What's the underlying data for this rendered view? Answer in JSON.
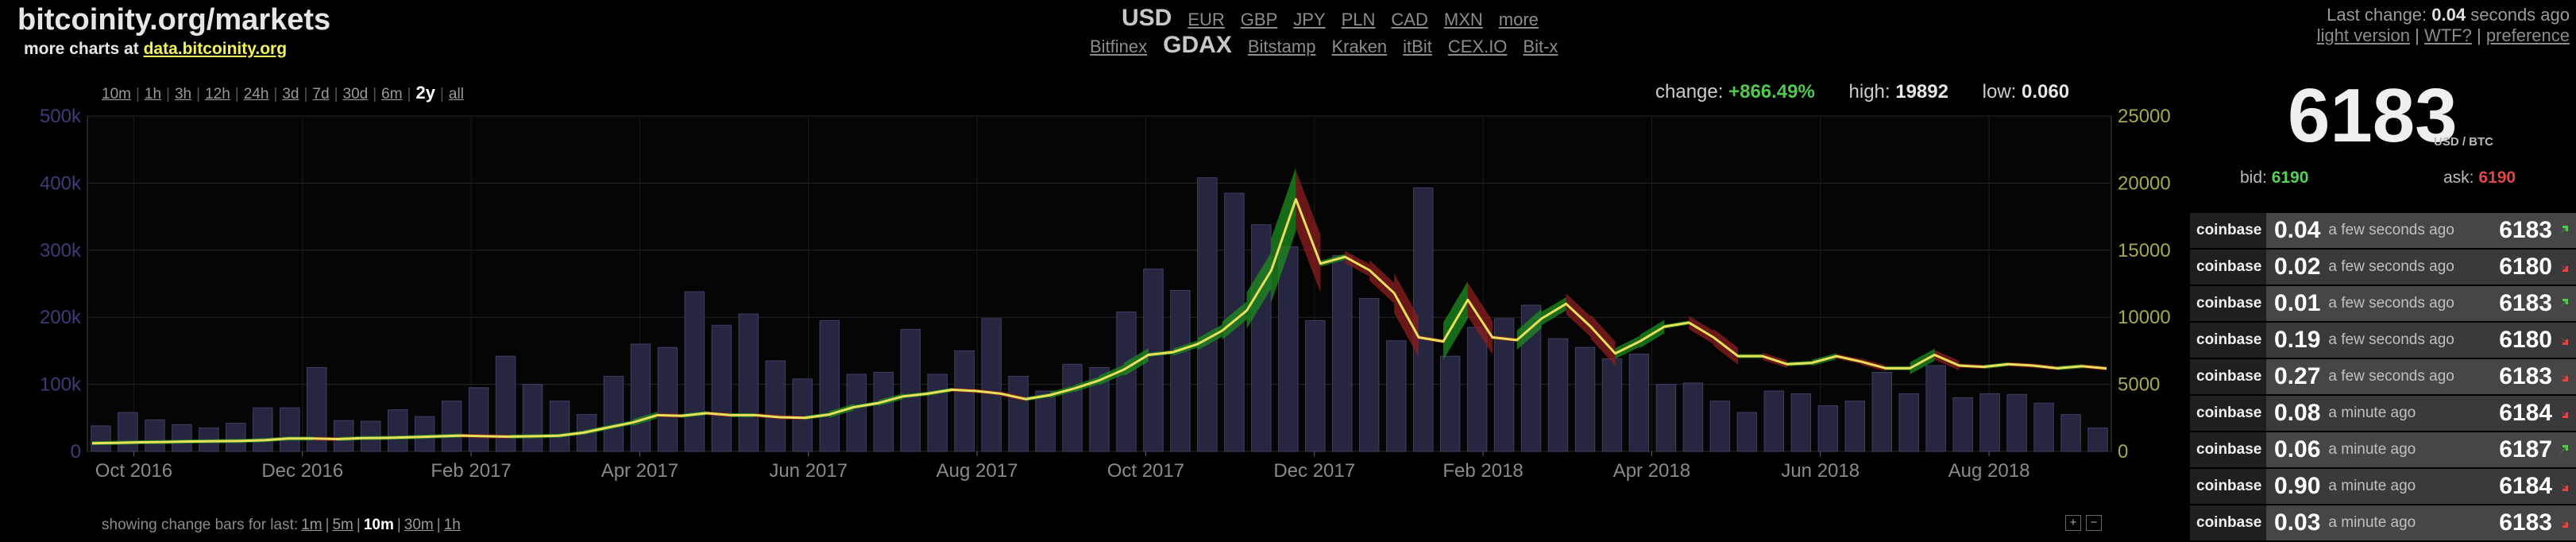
{
  "header": {
    "site_title": "bitcoinity.org/markets",
    "more_charts_prefix": "more charts at",
    "more_charts_link": "data.bitcoinity.org",
    "currencies": [
      "USD",
      "EUR",
      "GBP",
      "JPY",
      "PLN",
      "CAD",
      "MXN",
      "more"
    ],
    "selected_currency": "USD",
    "exchanges": [
      "Bitfinex",
      "GDAX",
      "Bitstamp",
      "Kraken",
      "itBit",
      "CEX.IO",
      "Bit-x"
    ],
    "selected_exchange": "GDAX",
    "last_change_prefix": "Last change:",
    "last_change_value": "0.04",
    "last_change_suffix": "seconds ago",
    "links": [
      "light version",
      "WTF?",
      "preference"
    ]
  },
  "range": {
    "options": [
      "10m",
      "1h",
      "3h",
      "12h",
      "24h",
      "3d",
      "7d",
      "30d",
      "6m",
      "2y",
      "all"
    ],
    "selected": "2y"
  },
  "stats": {
    "change_label": "change:",
    "change_value": "+866.49%",
    "high_label": "high:",
    "high_value": "19892",
    "low_label": "low:",
    "low_value": "0.060"
  },
  "colors": {
    "volume_bar": "#262640",
    "price_line": "#e8e05a",
    "up_fill": "#1e8c1e",
    "down_fill": "#8c1e1e",
    "positive": "#51c84f",
    "negative": "#e04848"
  },
  "chart_data": {
    "type": "bar",
    "title": "",
    "x_tick_labels": [
      "Oct 2016",
      "Dec 2016",
      "Feb 2017",
      "Apr 2017",
      "Jun 2017",
      "Aug 2017",
      "Oct 2017",
      "Dec 2017",
      "Feb 2018",
      "Apr 2018",
      "Jun 2018",
      "Aug 2018"
    ],
    "x_range_months": [
      0,
      24
    ],
    "y_left": {
      "ticks": [
        "0",
        "100k",
        "200k",
        "300k",
        "400k",
        "500k"
      ],
      "range": [
        0,
        500000
      ]
    },
    "y_right": {
      "ticks": [
        "0",
        "5000",
        "10000",
        "15000",
        "20000",
        "25000"
      ],
      "range": [
        0,
        25000
      ]
    },
    "grid": true,
    "series": [
      {
        "kind": "bar",
        "axis": "left",
        "values": [
          38000,
          58000,
          47000,
          40000,
          35000,
          42000,
          65000,
          65000,
          125000,
          46000,
          45000,
          62000,
          52000,
          75000,
          95000,
          142000,
          100000,
          75000,
          55000,
          112000,
          160000,
          155000,
          238000,
          188000,
          205000,
          135000,
          108000,
          195000,
          115000,
          118000,
          182000,
          115000,
          150000,
          198000,
          112000,
          90000,
          130000,
          125000,
          208000,
          272000,
          240000,
          408000,
          385000,
          338000,
          305000,
          195000,
          292000,
          228000,
          165000,
          393000,
          142000,
          185000,
          198000,
          218000,
          168000,
          155000,
          138000,
          145000,
          100000,
          102000,
          75000,
          58000,
          90000,
          86000,
          68000,
          75000,
          118000,
          86000,
          128000,
          80000,
          86000,
          85000,
          72000,
          55000,
          35000
        ]
      },
      {
        "kind": "line",
        "axis": "right",
        "values": [
          610,
          640,
          680,
          700,
          740,
          760,
          780,
          840,
          960,
          960,
          920,
          990,
          1010,
          1060,
          1120,
          1180,
          1130,
          1100,
          1130,
          1170,
          1400,
          1780,
          2150,
          2700,
          2650,
          2850,
          2700,
          2700,
          2550,
          2500,
          2750,
          3300,
          3600,
          4100,
          4300,
          4600,
          4500,
          4300,
          3900,
          4200,
          4700,
          5300,
          6100,
          7200,
          7400,
          8000,
          9000,
          10500,
          13500,
          18800,
          14000,
          14500,
          13500,
          11800,
          8500,
          8200,
          11300,
          8500,
          8300,
          9900,
          11000,
          9300,
          7300,
          8200,
          9300,
          9600,
          8500,
          7100,
          7100,
          6500,
          6600,
          7100,
          6700,
          6200,
          6200,
          7200,
          6400,
          6300,
          6500,
          6400,
          6200,
          6350,
          6183
        ]
      }
    ]
  },
  "ticker": {
    "price": "6183",
    "unit": "USD / BTC",
    "bid_label": "bid:",
    "bid_value": "6190",
    "ask_label": "ask:",
    "ask_value": "6190",
    "trades": [
      {
        "exchange": "coinbase",
        "amount": "0.04",
        "ago": "a few seconds ago",
        "price": "6183",
        "dir": "up"
      },
      {
        "exchange": "coinbase",
        "amount": "0.02",
        "ago": "a few seconds ago",
        "price": "6180",
        "dir": "down"
      },
      {
        "exchange": "coinbase",
        "amount": "0.01",
        "ago": "a few seconds ago",
        "price": "6183",
        "dir": "up"
      },
      {
        "exchange": "coinbase",
        "amount": "0.19",
        "ago": "a few seconds ago",
        "price": "6180",
        "dir": "down"
      },
      {
        "exchange": "coinbase",
        "amount": "0.27",
        "ago": "a few seconds ago",
        "price": "6183",
        "dir": "down"
      },
      {
        "exchange": "coinbase",
        "amount": "0.08",
        "ago": "a minute ago",
        "price": "6184",
        "dir": "down"
      },
      {
        "exchange": "coinbase",
        "amount": "0.06",
        "ago": "a minute ago",
        "price": "6187",
        "dir": "up"
      },
      {
        "exchange": "coinbase",
        "amount": "0.90",
        "ago": "a minute ago",
        "price": "6184",
        "dir": "down"
      },
      {
        "exchange": "coinbase",
        "amount": "0.03",
        "ago": "a minute ago",
        "price": "6183",
        "dir": "down"
      }
    ]
  },
  "change_bars": {
    "prefix": "showing change bars for last:",
    "options": [
      "1m",
      "5m",
      "10m",
      "30m",
      "1h"
    ],
    "selected": "10m"
  },
  "zoom_buttons": [
    "+",
    "−"
  ]
}
